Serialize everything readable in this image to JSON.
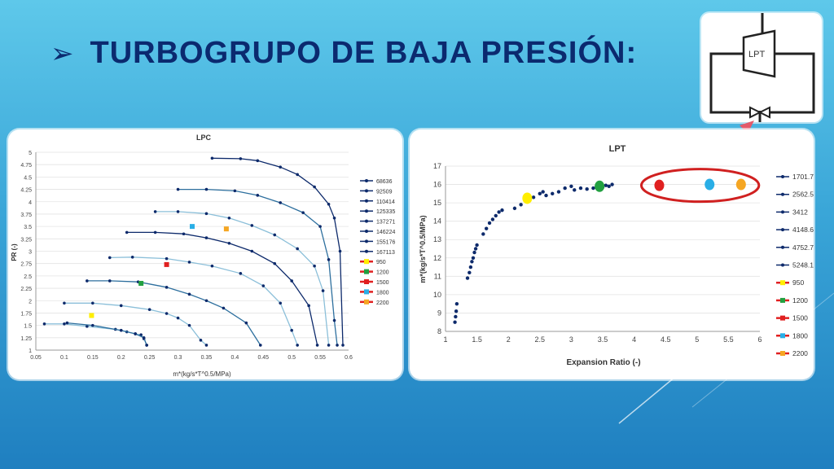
{
  "slide": {
    "title": "TURBOGRUPO DE BAJA PRESIÓN:",
    "bullet_icon": "arrow-bullet-icon"
  },
  "schematic": {
    "label": "LPT",
    "valve_icon": "valve-icon"
  },
  "colors": {
    "title": "#0b2a6f",
    "series_dark": "#0d2a6b",
    "series_mid": "#2d6f9e",
    "series_light": "#8bbfd9",
    "highlight": "#d02020",
    "y950": "#ffee00",
    "g1200": "#22a040",
    "r1500": "#e02020",
    "b1800": "#29aee6",
    "o2200": "#f5a623"
  },
  "chart_data": [
    {
      "type": "line",
      "title": "LPC",
      "xlabel": "m*(kg/s*T^0.5/MPa)",
      "ylabel": "PR (-)",
      "xlim": [
        0.05,
        0.6
      ],
      "ylim": [
        1,
        5
      ],
      "x_ticks": [
        "0.05",
        "0.1",
        "0.15",
        "0.2",
        "0.25",
        "0.3",
        "0.35",
        "0.4",
        "0.45",
        "0.5",
        "0.55",
        "0.6"
      ],
      "y_ticks": [
        "1",
        "1.25",
        "1.5",
        "1.75",
        "2",
        "2.25",
        "2.5",
        "2.75",
        "3",
        "3.25",
        "3.5",
        "3.75",
        "4",
        "4.25",
        "4.5",
        "4.75",
        "5"
      ],
      "grid": "horizontal",
      "legend_position": "right",
      "series": [
        {
          "name": "68636",
          "color": "#8bbfd9",
          "points": [
            [
              0.065,
              1.53
            ],
            [
              0.1,
              1.53
            ],
            [
              0.14,
              1.48
            ],
            [
              0.19,
              1.42
            ],
            [
              0.21,
              1.37
            ],
            [
              0.225,
              1.33
            ],
            [
              0.235,
              1.31
            ],
            [
              0.24,
              1.23
            ],
            [
              0.245,
              1.1
            ]
          ]
        },
        {
          "name": "92509",
          "color": "#2d6f9e",
          "points": [
            [
              0.105,
              1.55
            ],
            [
              0.15,
              1.5
            ],
            [
              0.2,
              1.4
            ],
            [
              0.225,
              1.33
            ],
            [
              0.24,
              1.25
            ],
            [
              0.245,
              1.1
            ]
          ]
        },
        {
          "name": "110414",
          "color": "#8bbfd9",
          "points": [
            [
              0.1,
              1.95
            ],
            [
              0.15,
              1.95
            ],
            [
              0.2,
              1.9
            ],
            [
              0.25,
              1.82
            ],
            [
              0.28,
              1.74
            ],
            [
              0.3,
              1.65
            ],
            [
              0.32,
              1.5
            ],
            [
              0.34,
              1.2
            ],
            [
              0.35,
              1.1
            ]
          ]
        },
        {
          "name": "125335",
          "color": "#2d6f9e",
          "points": [
            [
              0.14,
              2.4
            ],
            [
              0.18,
              2.4
            ],
            [
              0.23,
              2.38
            ],
            [
              0.28,
              2.27
            ],
            [
              0.32,
              2.13
            ],
            [
              0.35,
              2.0
            ],
            [
              0.38,
              1.85
            ],
            [
              0.42,
              1.55
            ],
            [
              0.445,
              1.1
            ]
          ]
        },
        {
          "name": "137271",
          "color": "#8bbfd9",
          "points": [
            [
              0.18,
              2.87
            ],
            [
              0.22,
              2.88
            ],
            [
              0.28,
              2.85
            ],
            [
              0.32,
              2.78
            ],
            [
              0.36,
              2.7
            ],
            [
              0.41,
              2.55
            ],
            [
              0.45,
              2.3
            ],
            [
              0.48,
              1.95
            ],
            [
              0.5,
              1.4
            ],
            [
              0.51,
              1.1
            ]
          ]
        },
        {
          "name": "146224",
          "color": "#0d2a6b",
          "points": [
            [
              0.21,
              3.38
            ],
            [
              0.26,
              3.38
            ],
            [
              0.31,
              3.35
            ],
            [
              0.35,
              3.27
            ],
            [
              0.39,
              3.16
            ],
            [
              0.43,
              3.0
            ],
            [
              0.47,
              2.75
            ],
            [
              0.5,
              2.4
            ],
            [
              0.53,
              1.9
            ],
            [
              0.545,
              1.1
            ]
          ]
        },
        {
          "name": "155176",
          "color": "#8bbfd9",
          "points": [
            [
              0.26,
              3.8
            ],
            [
              0.3,
              3.8
            ],
            [
              0.35,
              3.76
            ],
            [
              0.39,
              3.67
            ],
            [
              0.43,
              3.52
            ],
            [
              0.47,
              3.33
            ],
            [
              0.51,
              3.05
            ],
            [
              0.54,
              2.7
            ],
            [
              0.555,
              2.2
            ],
            [
              0.565,
              1.1
            ]
          ]
        },
        {
          "name": "167113",
          "color": "#2d6f9e",
          "points": [
            [
              0.3,
              4.25
            ],
            [
              0.35,
              4.25
            ],
            [
              0.4,
              4.22
            ],
            [
              0.44,
              4.13
            ],
            [
              0.48,
              3.98
            ],
            [
              0.52,
              3.78
            ],
            [
              0.55,
              3.5
            ],
            [
              0.565,
              2.83
            ],
            [
              0.575,
              1.6
            ],
            [
              0.58,
              1.1
            ]
          ]
        },
        {
          "name": "",
          "color": "#0d2a6b",
          "points": [
            [
              0.36,
              4.88
            ],
            [
              0.41,
              4.87
            ],
            [
              0.44,
              4.83
            ],
            [
              0.48,
              4.7
            ],
            [
              0.51,
              4.55
            ],
            [
              0.54,
              4.3
            ],
            [
              0.565,
              3.95
            ],
            [
              0.575,
              3.67
            ],
            [
              0.585,
              3.0
            ],
            [
              0.59,
              1.1
            ]
          ]
        }
      ],
      "operating_points": [
        {
          "name": "950",
          "color": "#ffee00",
          "x": 0.148,
          "y": 1.7
        },
        {
          "name": "1200",
          "color": "#22a040",
          "x": 0.235,
          "y": 2.35
        },
        {
          "name": "1500",
          "color": "#e02020",
          "x": 0.28,
          "y": 2.73
        },
        {
          "name": "1800",
          "color": "#29aee6",
          "x": 0.325,
          "y": 3.5
        },
        {
          "name": "2200",
          "color": "#f5a623",
          "x": 0.385,
          "y": 3.45
        }
      ]
    },
    {
      "type": "scatter",
      "title": "LPT",
      "xlabel": "Expansion Ratio (-)",
      "ylabel": "m*(kg/s*T^0.5/MPa)",
      "xlim": [
        1,
        6
      ],
      "ylim": [
        8,
        17
      ],
      "x_ticks": [
        "1",
        "1.5",
        "2",
        "2.5",
        "3",
        "3.5",
        "4",
        "4.5",
        "5",
        "5.5",
        "6"
      ],
      "y_ticks": [
        "8",
        "9",
        "10",
        "11",
        "12",
        "13",
        "14",
        "15",
        "16",
        "17"
      ],
      "grid": "horizontal",
      "legend_position": "right",
      "series": [
        {
          "name": "1701.79",
          "color": "#0d2a6b",
          "points": [
            [
              1.15,
              8.5
            ],
            [
              1.16,
              8.8
            ],
            [
              1.17,
              9.1
            ],
            [
              1.18,
              9.5
            ],
            [
              1.35,
              10.9
            ],
            [
              1.38,
              11.2
            ],
            [
              1.4,
              11.5
            ],
            [
              1.42,
              11.8
            ],
            [
              1.44,
              12.0
            ],
            [
              1.46,
              12.3
            ],
            [
              1.48,
              12.5
            ],
            [
              1.5,
              12.7
            ]
          ]
        },
        {
          "name": "2562.53",
          "color": "#0d2a6b",
          "points": [
            [
              1.6,
              13.3
            ],
            [
              1.65,
              13.6
            ],
            [
              1.7,
              13.9
            ],
            [
              1.75,
              14.1
            ],
            [
              1.8,
              14.3
            ],
            [
              1.85,
              14.5
            ],
            [
              1.9,
              14.6
            ]
          ]
        },
        {
          "name": "3412",
          "color": "#0d2a6b",
          "points": [
            [
              2.1,
              14.7
            ],
            [
              2.2,
              14.9
            ],
            [
              2.3,
              15.1
            ],
            [
              2.4,
              15.3
            ],
            [
              2.5,
              15.5
            ],
            [
              2.55,
              15.6
            ]
          ]
        },
        {
          "name": "4148.6",
          "color": "#0d2a6b",
          "points": [
            [
              2.6,
              15.4
            ],
            [
              2.7,
              15.5
            ],
            [
              2.8,
              15.6
            ],
            [
              2.9,
              15.8
            ],
            [
              3.0,
              15.9
            ]
          ]
        },
        {
          "name": "4752.77",
          "color": "#0d2a6b",
          "points": [
            [
              3.05,
              15.7
            ],
            [
              3.15,
              15.8
            ],
            [
              3.25,
              15.75
            ],
            [
              3.35,
              15.8
            ],
            [
              3.4,
              15.85
            ]
          ]
        },
        {
          "name": "5248.19",
          "color": "#0d2a6b",
          "points": [
            [
              3.45,
              15.9
            ],
            [
              3.5,
              15.85
            ],
            [
              3.55,
              15.95
            ],
            [
              3.6,
              15.9
            ],
            [
              3.65,
              16.0
            ]
          ]
        }
      ],
      "operating_points": [
        {
          "name": "950",
          "color": "#ffee00",
          "x": 2.3,
          "y": 15.25
        },
        {
          "name": "1200",
          "color": "#22a040",
          "x": 3.45,
          "y": 15.9
        },
        {
          "name": "1500",
          "color": "#e02020",
          "x": 4.4,
          "y": 15.95
        },
        {
          "name": "1800",
          "color": "#29aee6",
          "x": 5.2,
          "y": 16.0
        },
        {
          "name": "2200",
          "color": "#f5a623",
          "x": 5.7,
          "y": 16.0
        }
      ],
      "highlight": "operating points 1500, 1800, 2200 circled"
    }
  ]
}
